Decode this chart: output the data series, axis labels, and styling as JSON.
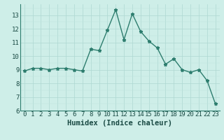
{
  "x": [
    0,
    1,
    2,
    3,
    4,
    5,
    6,
    7,
    8,
    9,
    10,
    11,
    12,
    13,
    14,
    15,
    16,
    17,
    18,
    19,
    20,
    21,
    22,
    23
  ],
  "y": [
    8.9,
    9.1,
    9.1,
    9.0,
    9.1,
    9.1,
    9.0,
    8.9,
    10.5,
    10.4,
    11.9,
    13.4,
    11.2,
    13.1,
    11.8,
    11.1,
    10.6,
    9.4,
    9.8,
    9.0,
    8.8,
    9.0,
    8.2,
    6.5
  ],
  "line_color": "#2d7d6e",
  "marker": "*",
  "marker_size": 3.5,
  "bg_color": "#ceeee8",
  "grid_color_major": "#aed8d2",
  "grid_color_minor": "#bde4de",
  "xlabel": "Humidex (Indice chaleur)",
  "xlim": [
    -0.5,
    23.5
  ],
  "ylim": [
    6,
    13.8
  ],
  "yticks": [
    6,
    7,
    8,
    9,
    10,
    11,
    12,
    13
  ],
  "xticks": [
    0,
    1,
    2,
    3,
    4,
    5,
    6,
    7,
    8,
    9,
    10,
    11,
    12,
    13,
    14,
    15,
    16,
    17,
    18,
    19,
    20,
    21,
    22,
    23
  ],
  "xlabel_fontsize": 7.5,
  "tick_fontsize": 6.5,
  "line_width": 1.0
}
